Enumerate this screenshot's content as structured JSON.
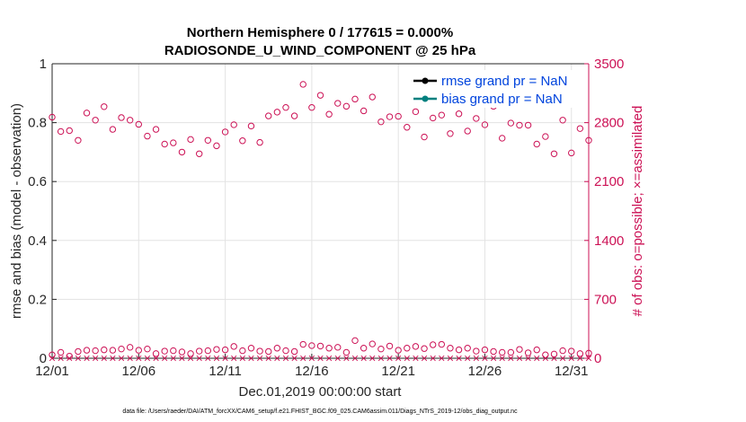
{
  "chart_data": {
    "type": "scatter",
    "title_line1": "Northern Hemisphere 0 / 177615 = 0.000%",
    "title_line2": "RADIOSONDE_U_WIND_COMPONENT @ 25 hPa",
    "xlabel": "Dec.01,2019 00:00:00 start",
    "ylabel_left": "rmse and bias (model - observation)",
    "ylabel_right": "# of obs: o=possible; ×=assimilated",
    "left_axis": {
      "ylim": [
        0,
        1
      ],
      "ticks": [
        0,
        0.2,
        0.4,
        0.6,
        0.8,
        1
      ],
      "tick_labels": [
        "0",
        "0.2",
        "0.4",
        "0.6",
        "0.8",
        "1"
      ]
    },
    "right_axis": {
      "ylim": [
        0,
        3500
      ],
      "ticks": [
        0,
        700,
        1400,
        2100,
        2800,
        3500
      ],
      "tick_labels": [
        "0",
        "700",
        "1400",
        "2100",
        "2800",
        "3500"
      ]
    },
    "x_axis": {
      "xlim": [
        1,
        32
      ],
      "ticks": [
        1,
        6,
        11,
        16,
        21,
        26,
        31
      ],
      "tick_labels": [
        "12/01",
        "12/06",
        "12/11",
        "12/16",
        "12/21",
        "12/26",
        "12/31"
      ]
    },
    "grid": true,
    "legend": {
      "placement": "top-right",
      "entries": [
        {
          "label": "rmse grand pr = NaN",
          "color": "#000000"
        },
        {
          "label": "bias grand pr = NaN",
          "color": "#00807f"
        }
      ]
    },
    "colors": {
      "obs": "#cc1155",
      "right_axis": "#cc1155",
      "legend_text": "#0044dd"
    },
    "series": [
      {
        "name": "possible obs (00Z/12Z)",
        "marker": "circle",
        "x": [
          1.0,
          1.5,
          2.0,
          2.5,
          3.0,
          3.5,
          4.0,
          4.5,
          5.0,
          5.5,
          6.0,
          6.5,
          7.0,
          7.5,
          8.0,
          8.5,
          9.0,
          9.5,
          10.0,
          10.5,
          11.0,
          11.5,
          12.0,
          12.5,
          13.0,
          13.5,
          14.0,
          14.5,
          15.0,
          15.5,
          16.0,
          16.5,
          17.0,
          17.5,
          18.0,
          18.5,
          19.0,
          19.5,
          20.0,
          20.5,
          21.0,
          21.5,
          22.0,
          22.5,
          23.0,
          23.5,
          24.0,
          24.5,
          25.0,
          25.5,
          26.0,
          26.5,
          27.0,
          27.5,
          28.0,
          28.5,
          29.0,
          29.5,
          30.0,
          30.5,
          31.0,
          31.5,
          32.0
        ],
        "values": [
          2865,
          2695,
          2705,
          2590,
          2915,
          2830,
          2990,
          2720,
          2860,
          2830,
          2780,
          2640,
          2720,
          2545,
          2560,
          2450,
          2600,
          2430,
          2590,
          2525,
          2690,
          2775,
          2585,
          2760,
          2565,
          2880,
          2925,
          2980,
          2880,
          3255,
          2980,
          3125,
          2900,
          3030,
          2995,
          3080,
          2940,
          3105,
          2810,
          2870,
          2875,
          2745,
          2930,
          2630,
          2855,
          2890,
          2670,
          2905,
          2700,
          2850,
          2775,
          2995,
          2615,
          2795,
          2770,
          2770,
          2545,
          2635,
          2430,
          2830,
          2440,
          2730,
          2590
        ]
      },
      {
        "name": "possible obs (06Z/18Z)",
        "marker": "circle",
        "x": [
          1.0,
          1.5,
          2.0,
          2.5,
          3.0,
          3.5,
          4.0,
          4.5,
          5.0,
          5.5,
          6.0,
          6.5,
          7.0,
          7.5,
          8.0,
          8.5,
          9.0,
          9.5,
          10.0,
          10.5,
          11.0,
          11.5,
          12.0,
          12.5,
          13.0,
          13.5,
          14.0,
          14.5,
          15.0,
          15.5,
          16.0,
          16.5,
          17.0,
          17.5,
          18.0,
          18.5,
          19.0,
          19.5,
          20.0,
          20.5,
          21.0,
          21.5,
          22.0,
          22.5,
          23.0,
          23.5,
          24.0,
          24.5,
          25.0,
          25.5,
          26.0,
          26.5,
          27.0,
          27.5,
          28.0,
          28.5,
          29.0,
          29.5,
          30.0,
          30.5,
          31.0,
          31.5,
          32.0
        ],
        "values": [
          40,
          70,
          25,
          80,
          95,
          90,
          100,
          95,
          110,
          130,
          95,
          110,
          55,
          85,
          90,
          75,
          55,
          85,
          90,
          105,
          100,
          140,
          90,
          120,
          85,
          80,
          120,
          90,
          80,
          165,
          150,
          145,
          120,
          130,
          70,
          210,
          120,
          170,
          110,
          145,
          95,
          120,
          140,
          115,
          160,
          165,
          120,
          100,
          120,
          85,
          100,
          80,
          70,
          70,
          105,
          65,
          100,
          40,
          50,
          90,
          85,
          55,
          60
        ]
      },
      {
        "name": "assimilated obs",
        "marker": "x",
        "x": [
          1.0,
          1.5,
          2.0,
          2.5,
          3.0,
          3.5,
          4.0,
          4.5,
          5.0,
          5.5,
          6.0,
          6.5,
          7.0,
          7.5,
          8.0,
          8.5,
          9.0,
          9.5,
          10.0,
          10.5,
          11.0,
          11.5,
          12.0,
          12.5,
          13.0,
          13.5,
          14.0,
          14.5,
          15.0,
          15.5,
          16.0,
          16.5,
          17.0,
          17.5,
          18.0,
          18.5,
          19.0,
          19.5,
          20.0,
          20.5,
          21.0,
          21.5,
          22.0,
          22.5,
          23.0,
          23.5,
          24.0,
          24.5,
          25.0,
          25.5,
          26.0,
          26.5,
          27.0,
          27.5,
          28.0,
          28.5,
          29.0,
          29.5,
          30.0,
          30.5,
          31.0,
          31.5,
          32.0
        ],
        "values": [
          0,
          0,
          0,
          0,
          0,
          0,
          0,
          0,
          0,
          0,
          0,
          0,
          0,
          0,
          0,
          0,
          0,
          0,
          0,
          0,
          0,
          0,
          0,
          0,
          0,
          0,
          0,
          0,
          0,
          0,
          0,
          0,
          0,
          0,
          0,
          0,
          0,
          0,
          0,
          0,
          0,
          0,
          0,
          0,
          0,
          0,
          0,
          0,
          0,
          0,
          0,
          0,
          0,
          0,
          0,
          0,
          0,
          0,
          0,
          0,
          0,
          0,
          0
        ]
      }
    ]
  },
  "footnote": "data file: /Users/raeder/DAI/ATM_forcXX/CAM6_setup/f.e21.FHIST_BGC.f09_025.CAM6assim.011/Diags_NTrS_2019-12/obs_diag_output.nc"
}
